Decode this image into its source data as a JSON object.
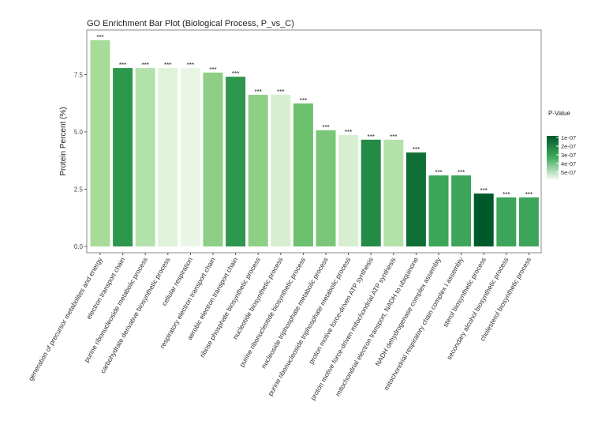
{
  "chart_data": {
    "type": "bar",
    "title": "GO Enrichment Bar Plot (Biological Process, P_vs_C)",
    "xlabel": "",
    "ylabel": "Protein Percent (%)",
    "ylim": [
      0,
      9.3
    ],
    "yticks": [
      "0.0",
      "2.5",
      "5.0",
      "7.5"
    ],
    "ytick_values": [
      0,
      2.5,
      5,
      7.5
    ],
    "categories": [
      "generation of precursor metabolites and energy",
      "electron transport chain",
      "purine ribonucleoside metabolic process",
      "carbohydrate derivative biosynthetic process",
      "cellular respiration",
      "respiratory electron transport chain",
      "aerobic electron transport chain",
      "ribose phosphate biosynthetic process",
      "nucleotide biosynthetic process",
      "purine ribonucleotide biosynthetic process",
      "nucleoside triphosphate metabolic process",
      "purine ribonucleoside triphosphate metabolic process",
      "proton motive force-driven ATP synthesis",
      "proton motive force-driven mitochondrial ATP synthesis",
      "mitochondrial electron transport, NADH to ubiquinone",
      "NADH dehydrogenase complex assembly",
      "mitochondrial respiratory chain complex I assembly",
      "sterol biosynthetic process",
      "secondary alcohol biosynthetic process",
      "cholesterol biosynthetic process"
    ],
    "values": [
      9.0,
      7.79,
      7.79,
      7.79,
      7.79,
      7.59,
      7.41,
      6.62,
      6.62,
      6.24,
      5.07,
      4.86,
      4.66,
      4.66,
      4.1,
      3.1,
      3.1,
      2.31,
      2.14,
      2.14
    ],
    "pvalues": [
      4e-07,
      2e-07,
      4.3e-07,
      5.2e-07,
      5.5e-07,
      3.7e-07,
      2e-07,
      3.7e-07,
      5e-07,
      3.2e-07,
      3.4e-07,
      5e-07,
      1.8e-07,
      4.3e-07,
      1.2e-07,
      2.5e-07,
      2.5e-07,
      1e-07,
      2.5e-07,
      2.5e-07
    ],
    "colors": [
      "#a6dc98",
      "#2e974e",
      "#b3e1aa",
      "#dff3d9",
      "#eaf6e5",
      "#8dcf84",
      "#2e974e",
      "#8dcf84",
      "#d7efd0",
      "#6cc06d",
      "#7ac77a",
      "#d7efd0",
      "#238b45",
      "#b3e1aa",
      "#0e6e35",
      "#3ca55a",
      "#3ca55a",
      "#00592a",
      "#3ca55a",
      "#3ca55a"
    ],
    "significance": "***",
    "legend": {
      "title": "P-Value",
      "labels": [
        "1e-07",
        "2e-07",
        "3e-07",
        "4e-07",
        "5e-07"
      ],
      "placement": "right",
      "color_high": "#00592a",
      "color_low": "#f2faef"
    }
  }
}
